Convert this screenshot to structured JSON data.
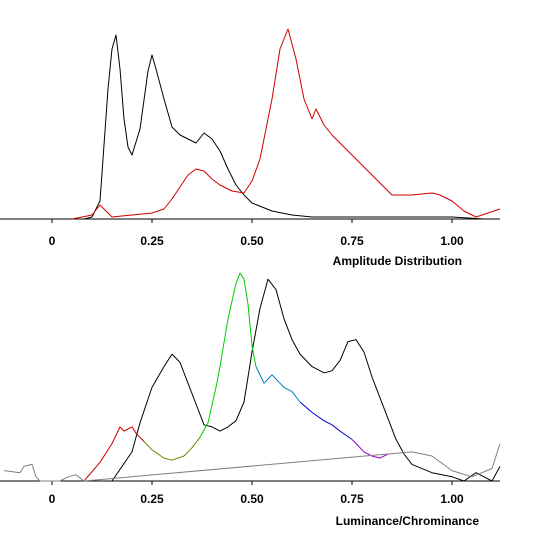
{
  "chart_data": [
    {
      "type": "line",
      "title": "",
      "xlabel": "Amplitude Distribution",
      "ylabel": "",
      "xlim": [
        -0.12,
        1.12
      ],
      "xticks": [
        0,
        0.25,
        0.5,
        0.75,
        1.0
      ],
      "xtick_labels": [
        "0",
        "0.25",
        "0.50",
        "0.75",
        "1.00"
      ],
      "grid": false,
      "series": [
        {
          "color": "#000000",
          "x": [
            0.08,
            0.1,
            0.12,
            0.14,
            0.15,
            0.16,
            0.17,
            0.18,
            0.19,
            0.2,
            0.22,
            0.24,
            0.25,
            0.26,
            0.28,
            0.3,
            0.32,
            0.34,
            0.36,
            0.38,
            0.4,
            0.42,
            0.44,
            0.46,
            0.48,
            0.5,
            0.55,
            0.6,
            0.65,
            0.7,
            0.8,
            0.9,
            1.0,
            1.08
          ],
          "y": [
            0.0,
            0.01,
            0.09,
            0.65,
            0.85,
            0.92,
            0.75,
            0.5,
            0.36,
            0.32,
            0.45,
            0.74,
            0.82,
            0.75,
            0.6,
            0.46,
            0.42,
            0.4,
            0.38,
            0.43,
            0.4,
            0.34,
            0.25,
            0.17,
            0.12,
            0.08,
            0.04,
            0.02,
            0.01,
            0.01,
            0.01,
            0.01,
            0.01,
            0.0
          ]
        },
        {
          "color": "#cc0000",
          "x": [
            0.05,
            0.1,
            0.12,
            0.15,
            0.2,
            0.25,
            0.28,
            0.3,
            0.32,
            0.34,
            0.36,
            0.38,
            0.4,
            0.42,
            0.45,
            0.48,
            0.5,
            0.52,
            0.55,
            0.57,
            0.59,
            0.61,
            0.63,
            0.65,
            0.66,
            0.68,
            0.7,
            0.75,
            0.8,
            0.85,
            0.9,
            0.95,
            0.97,
            1.0,
            1.03,
            1.06,
            1.09,
            1.12
          ],
          "y": [
            0.0,
            0.02,
            0.07,
            0.01,
            0.02,
            0.03,
            0.05,
            0.1,
            0.16,
            0.22,
            0.25,
            0.24,
            0.2,
            0.17,
            0.14,
            0.13,
            0.19,
            0.3,
            0.6,
            0.85,
            0.95,
            0.8,
            0.6,
            0.5,
            0.55,
            0.47,
            0.42,
            0.32,
            0.22,
            0.12,
            0.12,
            0.13,
            0.12,
            0.09,
            0.04,
            0.01,
            0.03,
            0.05
          ]
        }
      ]
    },
    {
      "type": "line",
      "title": "",
      "xlabel": "Luminance/Chrominance",
      "ylabel": "",
      "xlim": [
        -0.12,
        1.12
      ],
      "xticks": [
        0,
        0.25,
        0.5,
        0.75,
        1.0
      ],
      "xtick_labels": [
        "0",
        "0.25",
        "0.50",
        "0.75",
        "1.00"
      ],
      "grid": false,
      "series": [
        {
          "color": "#000000",
          "x": [
            0.15,
            0.2,
            0.22,
            0.25,
            0.28,
            0.3,
            0.32,
            0.34,
            0.36,
            0.38,
            0.4,
            0.42,
            0.44,
            0.46,
            0.48,
            0.5,
            0.52,
            0.54,
            0.56,
            0.58,
            0.6,
            0.62,
            0.65,
            0.68,
            0.7,
            0.72,
            0.74,
            0.76,
            0.78,
            0.8,
            0.82,
            0.84,
            0.86,
            0.88,
            0.9,
            0.95,
            1.0,
            1.03,
            1.06,
            1.08,
            1.1,
            1.12
          ],
          "y": [
            0.0,
            0.14,
            0.28,
            0.45,
            0.55,
            0.61,
            0.57,
            0.47,
            0.37,
            0.27,
            0.26,
            0.24,
            0.26,
            0.29,
            0.38,
            0.62,
            0.83,
            0.97,
            0.92,
            0.78,
            0.68,
            0.61,
            0.55,
            0.52,
            0.53,
            0.58,
            0.67,
            0.68,
            0.62,
            0.5,
            0.4,
            0.3,
            0.2,
            0.13,
            0.08,
            0.04,
            0.02,
            0.0,
            0.04,
            0.02,
            0.0,
            0.07
          ]
        },
        {
          "color": "#cc0000",
          "x": [
            0.08,
            0.12,
            0.15,
            0.17,
            0.18,
            0.2,
            0.21,
            0.23
          ],
          "y": [
            0.0,
            0.09,
            0.18,
            0.26,
            0.24,
            0.26,
            0.23,
            0.19
          ]
        },
        {
          "color": "#808000",
          "x": [
            0.23,
            0.25,
            0.28,
            0.3,
            0.33,
            0.35,
            0.37
          ],
          "y": [
            0.19,
            0.15,
            0.11,
            0.1,
            0.12,
            0.16,
            0.21
          ]
        },
        {
          "color": "#00cc00",
          "x": [
            0.37,
            0.39,
            0.41,
            0.42,
            0.44,
            0.46,
            0.47,
            0.48,
            0.49,
            0.5,
            0.51
          ],
          "y": [
            0.21,
            0.28,
            0.45,
            0.55,
            0.78,
            0.95,
            1.0,
            0.97,
            0.85,
            0.65,
            0.55
          ]
        },
        {
          "color": "#0080c0",
          "x": [
            0.51,
            0.53,
            0.55,
            0.57,
            0.58,
            0.6,
            0.62
          ],
          "y": [
            0.55,
            0.47,
            0.51,
            0.47,
            0.45,
            0.43,
            0.38
          ]
        },
        {
          "color": "#0000cc",
          "x": [
            0.62,
            0.65,
            0.68,
            0.7,
            0.72,
            0.75
          ],
          "y": [
            0.38,
            0.33,
            0.29,
            0.27,
            0.24,
            0.2
          ]
        },
        {
          "color": "#9900cc",
          "x": [
            0.75,
            0.78,
            0.8,
            0.82,
            0.84
          ],
          "y": [
            0.2,
            0.14,
            0.12,
            0.11,
            0.13
          ]
        },
        {
          "color": "#808080",
          "x": [
            -0.12,
            -0.08,
            -0.07,
            -0.05,
            -0.04,
            -0.03,
            -0.02,
            0.0,
            0.02,
            0.04,
            0.06,
            0.08,
            0.84,
            0.9,
            0.95,
            1.0,
            1.05,
            1.1,
            1.12
          ],
          "y": [
            0.05,
            0.04,
            0.07,
            0.08,
            0.02,
            0.0,
            0.0,
            0.0,
            0.0,
            0.02,
            0.03,
            0.0,
            0.13,
            0.14,
            0.12,
            0.05,
            0.02,
            0.06,
            0.18
          ]
        }
      ]
    }
  ]
}
